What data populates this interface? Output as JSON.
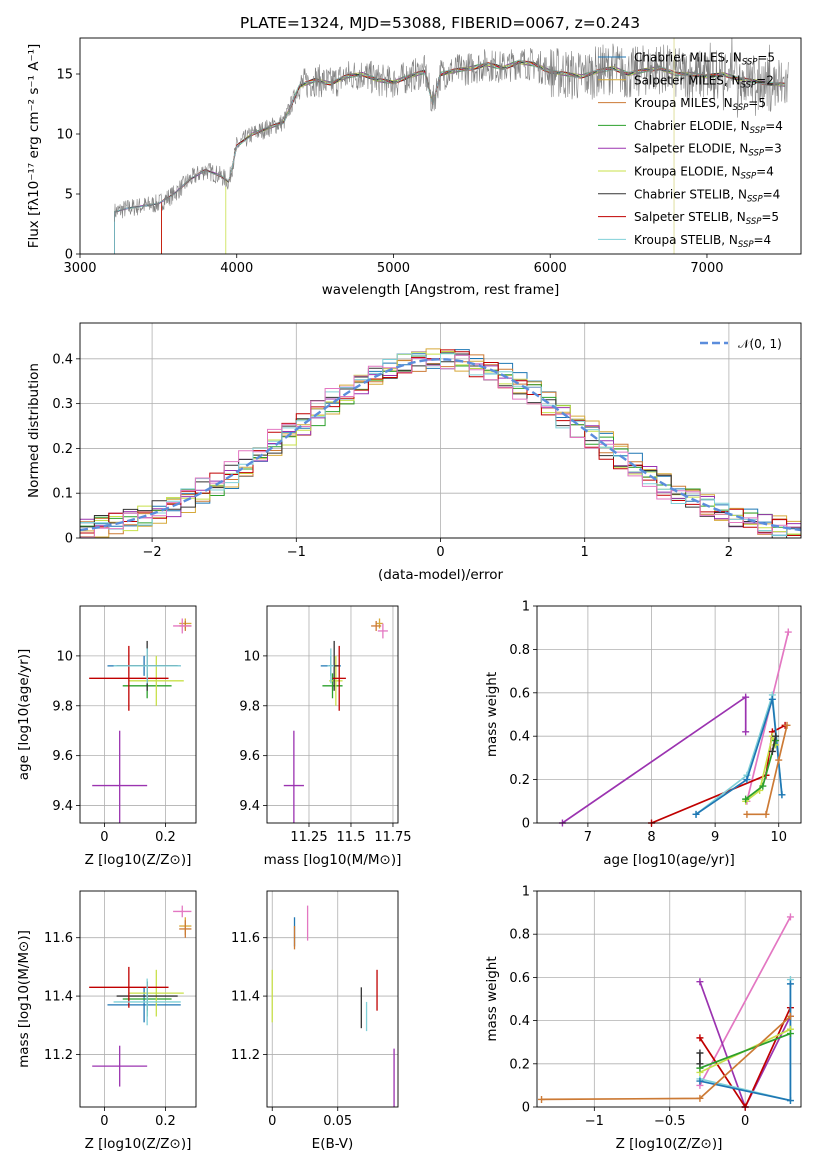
{
  "figure": {
    "title": "PLATE=1324, MJD=53088, FIBERID=0067, z=0.243"
  },
  "colors": {
    "data_spectrum": "#808080",
    "gaussian": "#5b8ddc",
    "grid": "#b0b0b0",
    "models": [
      "#1f77b4",
      "#d6a93a",
      "#cc7a35",
      "#2ca02c",
      "#9b33b0",
      "#c8e04a",
      "#333333",
      "#c00000",
      "#80d0d8",
      "#e377c2"
    ]
  },
  "models": [
    {
      "name": "Chabrier MILES",
      "nssp": "5",
      "color": "#1f77b4"
    },
    {
      "name": "Salpeter MILES",
      "nssp": "2",
      "color": "#d6a93a"
    },
    {
      "name": "Kroupa MILES",
      "nssp": "5",
      "color": "#cc7a35"
    },
    {
      "name": "Chabrier ELODIE",
      "nssp": "4",
      "color": "#2ca02c"
    },
    {
      "name": "Salpeter ELODIE",
      "nssp": "3",
      "color": "#9b33b0"
    },
    {
      "name": "Kroupa ELODIE",
      "nssp": "4",
      "color": "#c8e04a"
    },
    {
      "name": "Chabrier STELIB",
      "nssp": "4",
      "color": "#333333"
    },
    {
      "name": "Salpeter STELIB",
      "nssp": "5",
      "color": "#c00000"
    },
    {
      "name": "Kroupa STELIB",
      "nssp": "4",
      "color": "#80d0d8"
    }
  ],
  "chart_data": [
    {
      "id": "spectrum",
      "type": "line",
      "xlabel": "wavelength [Angstrom, rest frame]",
      "ylabel": "Flux [f_λ10^-17 erg cm^-2 s^-1 A^-1]",
      "xlim": [
        3000,
        7600
      ],
      "ylim": [
        0,
        18
      ],
      "xticks": [
        3000,
        4000,
        5000,
        6000,
        7000
      ],
      "yticks": [
        0,
        5,
        10,
        15
      ],
      "legend": "upper right",
      "x": [
        3220,
        3300,
        3400,
        3500,
        3600,
        3700,
        3800,
        3900,
        3950,
        4000,
        4100,
        4200,
        4300,
        4400,
        4500,
        4600,
        4700,
        4800,
        4900,
        5000,
        5100,
        5200,
        5250,
        5300,
        5400,
        5500,
        5600,
        5700,
        5800,
        5900,
        6000,
        6100,
        6200,
        6300,
        6400,
        6500,
        6600,
        6700,
        6800,
        6900,
        7000,
        7100,
        7200,
        7300,
        7400,
        7600
      ],
      "y": [
        3.5,
        3.8,
        4.0,
        4.2,
        5.0,
        6.2,
        7.0,
        6.5,
        6.0,
        9.0,
        10.0,
        10.5,
        11.0,
        14.0,
        14.5,
        14.2,
        14.8,
        15.0,
        14.5,
        14.3,
        14.8,
        15.2,
        12.5,
        15.0,
        15.3,
        15.5,
        15.8,
        15.5,
        16.0,
        15.8,
        15.2,
        15.0,
        14.8,
        15.2,
        15.5,
        15.0,
        15.3,
        15.5,
        15.0,
        15.0,
        14.8,
        15.0,
        14.6,
        14.4,
        14.2,
        14.0
      ]
    },
    {
      "id": "residuals",
      "type": "line",
      "xlabel": "(data-model)/error",
      "ylabel": "Normed distribution",
      "xlim": [
        -2.5,
        2.5
      ],
      "ylim": [
        0,
        0.48
      ],
      "xticks": [
        -2,
        -1,
        0,
        1,
        2
      ],
      "yticks": [
        0.0,
        0.1,
        0.2,
        0.3,
        0.4
      ],
      "legend_label": "𝒩(0, 1)",
      "legend": "upper right",
      "bin_width": 0.1
    },
    {
      "id": "z-vs-age",
      "type": "scatter",
      "xlabel": "Z [log10(Z/Z⊙)]",
      "ylabel": "age [log10(age/yr)]",
      "xlim": [
        -0.08,
        0.3
      ],
      "ylim": [
        9.33,
        10.2
      ],
      "xticks": [
        0.0,
        0.2
      ],
      "yticks": [
        9.4,
        9.6,
        9.8,
        10.0
      ],
      "points": [
        {
          "x": 0.13,
          "y": 9.96,
          "xerr": 0.12,
          "yerr": 0.04,
          "color": "#1f77b4"
        },
        {
          "x": 0.265,
          "y": 10.13,
          "xerr": 0.02,
          "yerr": 0.02,
          "color": "#d6a93a"
        },
        {
          "x": 0.265,
          "y": 10.12,
          "xerr": 0.02,
          "yerr": 0.02,
          "color": "#cc7a35"
        },
        {
          "x": 0.14,
          "y": 9.88,
          "xerr": 0.08,
          "yerr": 0.05,
          "color": "#2ca02c"
        },
        {
          "x": 0.05,
          "y": 9.48,
          "xerr": 0.09,
          "yerr": 0.22,
          "color": "#9b33b0"
        },
        {
          "x": 0.17,
          "y": 9.9,
          "xerr": 0.09,
          "yerr": 0.1,
          "color": "#c8e04a"
        },
        {
          "x": 0.14,
          "y": 9.96,
          "xerr": 0.1,
          "yerr": 0.1,
          "color": "#333333"
        },
        {
          "x": 0.08,
          "y": 9.91,
          "xerr": 0.13,
          "yerr": 0.13,
          "color": "#c00000"
        },
        {
          "x": 0.14,
          "y": 9.96,
          "xerr": 0.11,
          "yerr": 0.07,
          "color": "#80d0d8"
        },
        {
          "x": 0.255,
          "y": 10.12,
          "xerr": 0.03,
          "yerr": 0.03,
          "color": "#e377c2"
        }
      ]
    },
    {
      "id": "mass-vs-age",
      "type": "scatter",
      "xlabel": "mass [log10(M/M⊙)]",
      "ylabel": "",
      "xlim": [
        11.0,
        11.78
      ],
      "ylim": [
        9.33,
        10.2
      ],
      "xticks": [
        11.25,
        11.5,
        11.75
      ],
      "yticks": [
        9.4,
        9.6,
        9.8,
        10.0
      ],
      "points": [
        {
          "x": 11.38,
          "y": 9.96,
          "xerr": 0.06,
          "yerr": 0.04,
          "color": "#1f77b4"
        },
        {
          "x": 11.67,
          "y": 10.13,
          "xerr": 0.02,
          "yerr": 0.02,
          "color": "#d6a93a"
        },
        {
          "x": 11.65,
          "y": 10.12,
          "xerr": 0.03,
          "yerr": 0.02,
          "color": "#cc7a35"
        },
        {
          "x": 11.39,
          "y": 9.88,
          "xerr": 0.06,
          "yerr": 0.05,
          "color": "#2ca02c"
        },
        {
          "x": 11.16,
          "y": 9.48,
          "xerr": 0.06,
          "yerr": 0.22,
          "color": "#9b33b0"
        },
        {
          "x": 11.41,
          "y": 9.9,
          "xerr": 0.04,
          "yerr": 0.1,
          "color": "#c8e04a"
        },
        {
          "x": 11.4,
          "y": 9.96,
          "xerr": 0.03,
          "yerr": 0.1,
          "color": "#333333"
        },
        {
          "x": 11.43,
          "y": 9.91,
          "xerr": 0.04,
          "yerr": 0.13,
          "color": "#c00000"
        },
        {
          "x": 11.38,
          "y": 9.96,
          "xerr": 0.02,
          "yerr": 0.07,
          "color": "#80d0d8"
        },
        {
          "x": 11.69,
          "y": 10.1,
          "xerr": 0.03,
          "yerr": 0.03,
          "color": "#e377c2"
        }
      ]
    },
    {
      "id": "age-vs-massweight",
      "type": "line",
      "xlabel": "age [log10(age/yr)]",
      "ylabel": "mass weight",
      "xlim": [
        6.2,
        10.35
      ],
      "ylim": [
        0,
        1.0
      ],
      "xticks": [
        7,
        8,
        9,
        10
      ],
      "yticks": [
        0.0,
        0.2,
        0.4,
        0.6,
        0.8,
        1.0
      ],
      "series": [
        {
          "color": "#e377c2",
          "x": [
            9.5,
            10.15
          ],
          "y": [
            0.1,
            0.88
          ]
        },
        {
          "color": "#9b33b0",
          "x": [
            6.6,
            9.48,
            9.48
          ],
          "y": [
            0.0,
            0.58,
            0.42
          ]
        },
        {
          "color": "#c00000",
          "x": [
            8.0,
            9.8,
            9.9,
            10.1
          ],
          "y": [
            0.0,
            0.22,
            0.42,
            0.45
          ]
        },
        {
          "color": "#80d0d8",
          "x": [
            8.7,
            9.5,
            9.9,
            10.05
          ],
          "y": [
            0.04,
            0.22,
            0.59,
            0.13
          ]
        },
        {
          "color": "#1f77b4",
          "x": [
            8.7,
            9.5,
            9.9,
            10.05
          ],
          "y": [
            0.04,
            0.2,
            0.57,
            0.13
          ]
        },
        {
          "color": "#c8e04a",
          "x": [
            9.48,
            9.7,
            9.9,
            9.95
          ],
          "y": [
            0.1,
            0.15,
            0.4,
            0.36
          ]
        },
        {
          "color": "#2ca02c",
          "x": [
            9.48,
            9.75,
            9.95
          ],
          "y": [
            0.11,
            0.17,
            0.38
          ]
        },
        {
          "color": "#333333",
          "x": [
            9.9,
            9.95
          ],
          "y": [
            0.33,
            0.4
          ]
        },
        {
          "color": "#cc7a35",
          "x": [
            9.5,
            9.8,
            10.0,
            10.13
          ],
          "y": [
            0.04,
            0.04,
            0.29,
            0.45
          ]
        }
      ]
    },
    {
      "id": "z-vs-mass",
      "type": "scatter",
      "xlabel": "Z [log10(Z/Z⊙)]",
      "ylabel": "mass [log10(M/M⊙)]",
      "xlim": [
        -0.08,
        0.3
      ],
      "ylim": [
        11.02,
        11.76
      ],
      "xticks": [
        0.0,
        0.2
      ],
      "yticks": [
        11.2,
        11.4,
        11.6
      ],
      "points": [
        {
          "x": 0.13,
          "y": 11.37,
          "xerr": 0.12,
          "yerr": 0.06,
          "color": "#1f77b4"
        },
        {
          "x": 0.265,
          "y": 11.64,
          "xerr": 0.02,
          "yerr": 0.03,
          "color": "#d6a93a"
        },
        {
          "x": 0.265,
          "y": 11.63,
          "xerr": 0.02,
          "yerr": 0.03,
          "color": "#cc7a35"
        },
        {
          "x": 0.14,
          "y": 11.39,
          "xerr": 0.08,
          "yerr": 0.06,
          "color": "#2ca02c"
        },
        {
          "x": 0.05,
          "y": 11.16,
          "xerr": 0.09,
          "yerr": 0.07,
          "color": "#9b33b0"
        },
        {
          "x": 0.17,
          "y": 11.41,
          "xerr": 0.09,
          "yerr": 0.08,
          "color": "#c8e04a"
        },
        {
          "x": 0.14,
          "y": 11.4,
          "xerr": 0.1,
          "yerr": 0.05,
          "color": "#333333"
        },
        {
          "x": 0.08,
          "y": 11.43,
          "xerr": 0.13,
          "yerr": 0.07,
          "color": "#c00000"
        },
        {
          "x": 0.14,
          "y": 11.38,
          "xerr": 0.11,
          "yerr": 0.08,
          "color": "#80d0d8"
        },
        {
          "x": 0.255,
          "y": 11.69,
          "xerr": 0.03,
          "yerr": 0.02,
          "color": "#e377c2"
        }
      ]
    },
    {
      "id": "ebv-vs-mass",
      "type": "scatter",
      "xlabel": "E(B-V)",
      "ylabel": "",
      "xlim": [
        -0.004,
        0.096
      ],
      "ylim": [
        11.02,
        11.76
      ],
      "xticks": [
        0.0,
        0.05
      ],
      "yticks": [
        11.2,
        11.4,
        11.6
      ],
      "points": [
        {
          "x": 0.0,
          "y": 11.4,
          "xerr": 0,
          "yerr": 0.09,
          "color": "#c8e04a"
        },
        {
          "x": 0.017,
          "y": 11.62,
          "xerr": 0,
          "yerr": 0.05,
          "color": "#1f77b4"
        },
        {
          "x": 0.017,
          "y": 11.6,
          "xerr": 0,
          "yerr": 0.04,
          "color": "#cc7a35"
        },
        {
          "x": 0.027,
          "y": 11.65,
          "xerr": 0,
          "yerr": 0.06,
          "color": "#e377c2"
        },
        {
          "x": 0.068,
          "y": 11.36,
          "xerr": 0,
          "yerr": 0.07,
          "color": "#333333"
        },
        {
          "x": 0.072,
          "y": 11.33,
          "xerr": 0,
          "yerr": 0.05,
          "color": "#80d0d8"
        },
        {
          "x": 0.08,
          "y": 11.42,
          "xerr": 0,
          "yerr": 0.07,
          "color": "#c00000"
        },
        {
          "x": 0.093,
          "y": 11.12,
          "xerr": 0,
          "yerr": 0.1,
          "color": "#9b33b0"
        }
      ]
    },
    {
      "id": "z-vs-massweight",
      "type": "line",
      "xlabel": "Z [log10(Z/Z⊙)]",
      "ylabel": "mass weight",
      "xlim": [
        -1.38,
        0.37
      ],
      "ylim": [
        0,
        1.0
      ],
      "xticks": [
        -1.0,
        -0.5,
        0.0
      ],
      "yticks": [
        0.0,
        0.2,
        0.4,
        0.6,
        0.8,
        1.0
      ],
      "series": [
        {
          "color": "#e377c2",
          "x": [
            -0.3,
            0.3
          ],
          "y": [
            0.1,
            0.88
          ]
        },
        {
          "color": "#9b33b0",
          "x": [
            -0.3,
            0.0,
            0.3
          ],
          "y": [
            0.58,
            0.0,
            0.42
          ]
        },
        {
          "color": "#c00000",
          "x": [
            -0.3,
            0.0,
            0.3
          ],
          "y": [
            0.32,
            0.0,
            0.46
          ]
        },
        {
          "color": "#80d0d8",
          "x": [
            -0.3,
            0.3,
            0.3
          ],
          "y": [
            0.13,
            0.03,
            0.59
          ]
        },
        {
          "color": "#1f77b4",
          "x": [
            -0.3,
            0.3,
            0.3
          ],
          "y": [
            0.12,
            0.03,
            0.57
          ]
        },
        {
          "color": "#c8e04a",
          "x": [
            -0.3,
            0.3
          ],
          "y": [
            0.16,
            0.36
          ]
        },
        {
          "color": "#2ca02c",
          "x": [
            -0.3,
            0.3
          ],
          "y": [
            0.18,
            0.34
          ]
        },
        {
          "color": "#333333",
          "x": [
            -0.3,
            -0.3
          ],
          "y": [
            0.2,
            0.25
          ]
        },
        {
          "color": "#cc7a35",
          "x": [
            -1.35,
            -0.3,
            0.3
          ],
          "y": [
            0.035,
            0.04,
            0.42
          ]
        }
      ]
    }
  ]
}
